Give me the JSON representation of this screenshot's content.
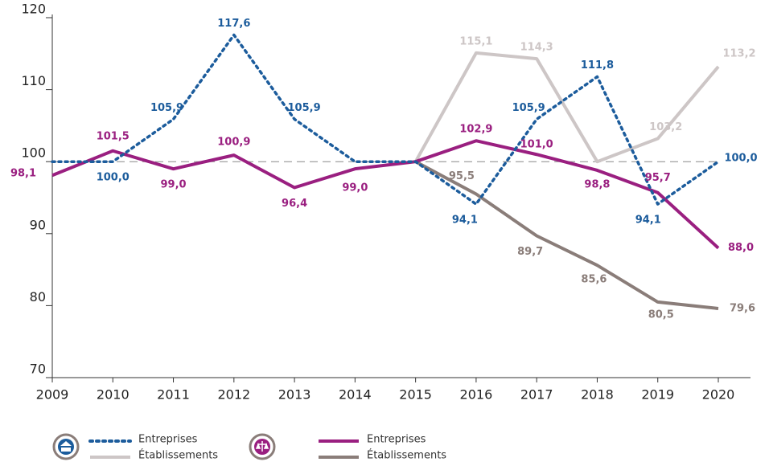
{
  "chart_data": {
    "type": "line",
    "categories": [
      "2009",
      "2010",
      "2011",
      "2012",
      "2013",
      "2014",
      "2015",
      "2016",
      "2017",
      "2018",
      "2019",
      "2020"
    ],
    "ylim": [
      70,
      120
    ],
    "yticks": [
      70,
      80,
      90,
      100,
      110,
      120
    ],
    "reference_line": 100,
    "series": [
      {
        "name": "Entreprises",
        "color": "#1c5c9c",
        "line_style": "dotted",
        "values": [
          100,
          100,
          105.9,
          117.6,
          105.9,
          100,
          100,
          94.1,
          105.9,
          111.8,
          94.1,
          100
        ],
        "value_labels": [
          null,
          "100,0",
          "105,9",
          "117,6",
          "105,9",
          null,
          null,
          "94,1",
          "105,9",
          "111,8",
          "94,1",
          "100,0"
        ]
      },
      {
        "name": "Établissements",
        "color": "#cdc6c6",
        "line_style": "solid",
        "values": [
          null,
          null,
          null,
          null,
          null,
          null,
          100,
          115.1,
          114.3,
          100,
          103.2,
          113.2
        ],
        "value_labels": [
          null,
          null,
          null,
          null,
          null,
          null,
          null,
          "115,1",
          "114,3",
          null,
          "103,2",
          "113,2"
        ]
      },
      {
        "name": "Entreprises",
        "color": "#9a1f80",
        "line_style": "solid",
        "values": [
          98.1,
          101.5,
          99.0,
          100.9,
          96.4,
          99.0,
          100,
          102.9,
          101.0,
          98.8,
          95.7,
          88.0
        ],
        "value_labels": [
          "98,1",
          "101,5",
          "99,0",
          "100,9",
          "96,4",
          "99,0",
          null,
          "102,9",
          "101,0",
          "98,8",
          "95,7",
          "88,0"
        ]
      },
      {
        "name": "Établissements",
        "color": "#8a7d79",
        "line_style": "solid",
        "values": [
          null,
          null,
          null,
          null,
          null,
          null,
          100,
          95.5,
          89.7,
          85.6,
          80.5,
          79.6
        ],
        "value_labels": [
          null,
          null,
          null,
          null,
          null,
          null,
          null,
          "95,5",
          "89,7",
          "85,6",
          "80,5",
          "79,6"
        ]
      }
    ]
  }
}
